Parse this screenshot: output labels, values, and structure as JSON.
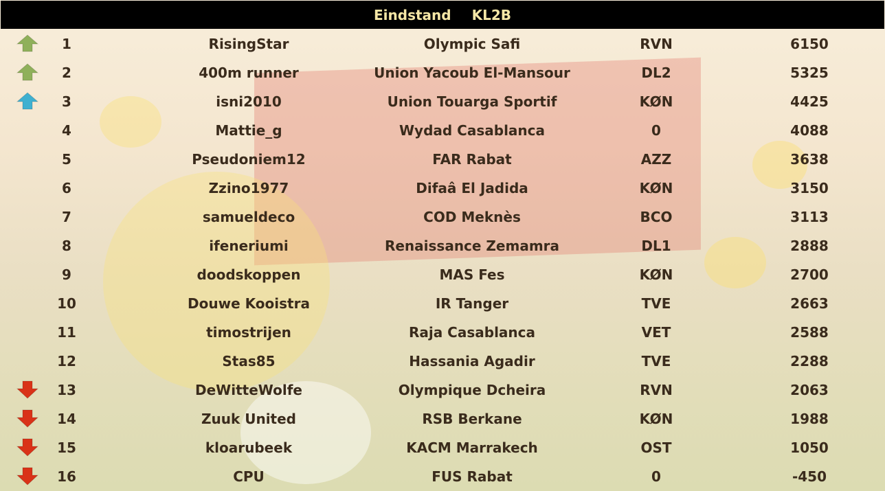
{
  "header": {
    "title": "Eindstand",
    "league": "KL2B"
  },
  "colors": {
    "up": "#8fb05a",
    "up_blue": "#3fb0d0",
    "down": "#d93218"
  },
  "rows": [
    {
      "trend": "up",
      "rank": "1",
      "name": "RisingStar",
      "team": "Olympic Safi",
      "code": "RVN",
      "points": "6150"
    },
    {
      "trend": "up",
      "rank": "2",
      "name": "400m runner",
      "team": "Union Yacoub El-Mansour",
      "code": "DL2",
      "points": "5325"
    },
    {
      "trend": "up_blue",
      "rank": "3",
      "name": "isni2010",
      "team": "Union Touarga Sportif",
      "code": "KØN",
      "points": "4425"
    },
    {
      "trend": "",
      "rank": "4",
      "name": "Mattie_g",
      "team": "Wydad Casablanca",
      "code": "0",
      "points": "4088"
    },
    {
      "trend": "",
      "rank": "5",
      "name": "Pseudoniem12",
      "team": "FAR Rabat",
      "code": "AZZ",
      "points": "3638"
    },
    {
      "trend": "",
      "rank": "6",
      "name": "Zzino1977",
      "team": "Difaâ El Jadida",
      "code": "KØN",
      "points": "3150"
    },
    {
      "trend": "",
      "rank": "7",
      "name": "samueldeco",
      "team": "COD Meknès",
      "code": "BCO",
      "points": "3113"
    },
    {
      "trend": "",
      "rank": "8",
      "name": "ifeneriumi",
      "team": "Renaissance Zemamra",
      "code": "DL1",
      "points": "2888"
    },
    {
      "trend": "",
      "rank": "9",
      "name": "doodskoppen",
      "team": "MAS Fes",
      "code": "KØN",
      "points": "2700"
    },
    {
      "trend": "",
      "rank": "10",
      "name": "Douwe Kooistra",
      "team": "IR Tanger",
      "code": "TVE",
      "points": "2663"
    },
    {
      "trend": "",
      "rank": "11",
      "name": "timostrijen",
      "team": "Raja Casablanca",
      "code": "VET",
      "points": "2588"
    },
    {
      "trend": "",
      "rank": "12",
      "name": "Stas85",
      "team": "Hassania Agadir",
      "code": "TVE",
      "points": "2288"
    },
    {
      "trend": "down",
      "rank": "13",
      "name": "DeWitteWolfe",
      "team": "Olympique Dcheira",
      "code": "RVN",
      "points": "2063"
    },
    {
      "trend": "down",
      "rank": "14",
      "name": "Zuuk United",
      "team": "RSB Berkane",
      "code": "KØN",
      "points": "1988"
    },
    {
      "trend": "down",
      "rank": "15",
      "name": "kloarubeek",
      "team": "KACM Marrakech",
      "code": "OST",
      "points": "1050"
    },
    {
      "trend": "down",
      "rank": "16",
      "name": "CPU",
      "team": "FUS Rabat",
      "code": "0",
      "points": "-450"
    }
  ]
}
